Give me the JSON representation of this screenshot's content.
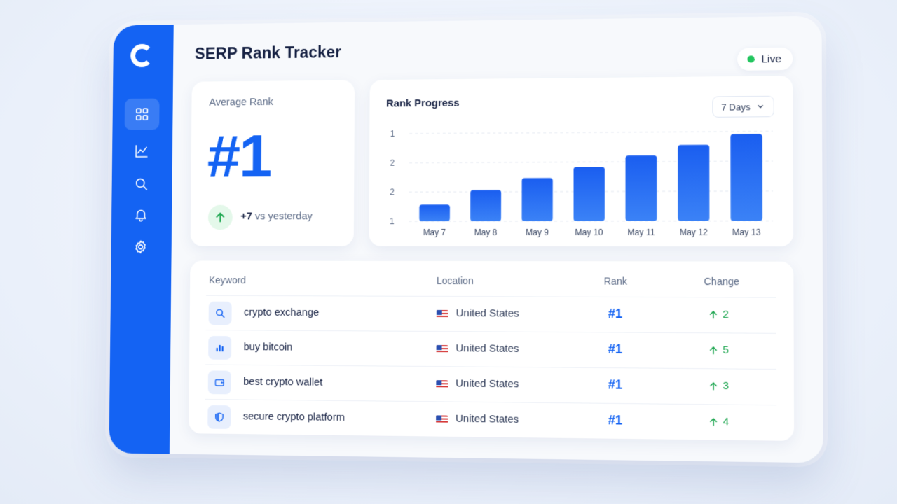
{
  "app": {
    "title": "SERP Rank Tracker",
    "status": "Live",
    "colors": {
      "accent": "#1463f3",
      "positive": "#16a34a",
      "live_dot": "#22c55e"
    }
  },
  "sidebar": {
    "logo": "logo-c-icon",
    "items": [
      {
        "icon": "dashboard-grid-icon",
        "active": true
      },
      {
        "icon": "chart-line-icon",
        "active": false
      },
      {
        "icon": "search-icon",
        "active": false
      },
      {
        "icon": "bell-icon",
        "active": false
      },
      {
        "icon": "gear-icon",
        "active": false
      }
    ]
  },
  "average_rank": {
    "label": "Average Rank",
    "value": "#1",
    "delta": "+7",
    "delta_suffix": "vs yesterday"
  },
  "rank_progress": {
    "title": "Rank Progress",
    "range_select": "7 Days"
  },
  "chart_data": {
    "type": "bar",
    "title": "Rank Progress",
    "categories": [
      "May 7",
      "May 8",
      "May 9",
      "May 10",
      "May 11",
      "May 12",
      "May 13"
    ],
    "values": [
      0.32,
      0.6,
      0.83,
      1.04,
      1.25,
      1.45,
      1.65
    ],
    "y_tick_labels": [
      "1",
      "2",
      "2",
      "1"
    ],
    "ylim": [
      0,
      1.7
    ],
    "grid": "horizontal dashed"
  },
  "table": {
    "headers": {
      "keyword": "Keyword",
      "location": "Location",
      "rank": "Rank",
      "change": "Change"
    },
    "rows": [
      {
        "icon": "search-icon",
        "keyword": "crypto exchange",
        "location": "United States",
        "rank": "#1",
        "change": "2"
      },
      {
        "icon": "bar-chart-icon",
        "keyword": "buy bitcoin",
        "location": "United States",
        "rank": "#1",
        "change": "5"
      },
      {
        "icon": "wallet-icon",
        "keyword": "best crypto wallet",
        "location": "United States",
        "rank": "#1",
        "change": "3"
      },
      {
        "icon": "shield-icon",
        "keyword": "secure crypto platform",
        "location": "United States",
        "rank": "#1",
        "change": "4"
      }
    ]
  }
}
